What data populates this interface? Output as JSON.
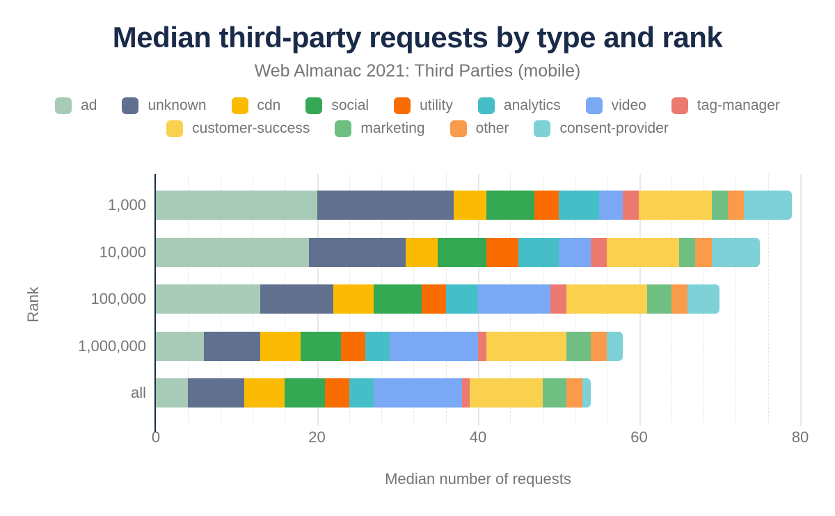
{
  "chart_data": {
    "type": "bar",
    "orientation": "horizontal-stacked",
    "title": "Median third-party requests by type and rank",
    "subtitle": "Web Almanac 2021: Third Parties (mobile)",
    "xlabel": "Median number of requests",
    "ylabel": "Rank",
    "categories": [
      "1,000",
      "10,000",
      "100,000",
      "1,000,000",
      "all"
    ],
    "series": [
      {
        "name": "ad",
        "color": "#a8cbb8",
        "values": [
          20,
          19,
          13,
          6,
          4
        ]
      },
      {
        "name": "unknown",
        "color": "#61708f",
        "values": [
          17,
          12,
          9,
          7,
          7
        ]
      },
      {
        "name": "cdn",
        "color": "#fbbb04",
        "values": [
          4,
          4,
          5,
          5,
          5
        ]
      },
      {
        "name": "social",
        "color": "#34a853",
        "values": [
          6,
          6,
          6,
          5,
          5
        ]
      },
      {
        "name": "utility",
        "color": "#f96d00",
        "values": [
          3,
          4,
          3,
          3,
          3
        ]
      },
      {
        "name": "analytics",
        "color": "#46bec7",
        "values": [
          5,
          5,
          4,
          3,
          3
        ]
      },
      {
        "name": "video",
        "color": "#7aa8f5",
        "values": [
          3,
          4,
          9,
          11,
          11
        ]
      },
      {
        "name": "tag-manager",
        "color": "#ec7a70",
        "values": [
          2,
          2,
          2,
          1,
          1
        ]
      },
      {
        "name": "customer-success",
        "color": "#fad14f",
        "values": [
          9,
          9,
          10,
          10,
          9
        ]
      },
      {
        "name": "marketing",
        "color": "#6fbf83",
        "values": [
          2,
          2,
          3,
          3,
          3
        ]
      },
      {
        "name": "other",
        "color": "#fa9a4b",
        "values": [
          2,
          2,
          2,
          2,
          2
        ]
      },
      {
        "name": "consent-provider",
        "color": "#7dd1d7",
        "values": [
          6,
          6,
          4,
          2,
          1
        ]
      }
    ],
    "totals": [
      79,
      75,
      70,
      58,
      54
    ],
    "xlim": [
      0,
      80
    ],
    "xticks": [
      0,
      20,
      40,
      60,
      80
    ],
    "minor_grid_step": 4,
    "legend_row_counts": [
      8,
      4
    ],
    "legend_position": "top",
    "grid": "on",
    "style_colors": {
      "title": "#1a2b49",
      "axis_line": "#1a2b49",
      "text_gray": "#757575",
      "grid_major": "#e8e8e8",
      "grid_minor": "#dedede",
      "background": "#ffffff"
    }
  }
}
